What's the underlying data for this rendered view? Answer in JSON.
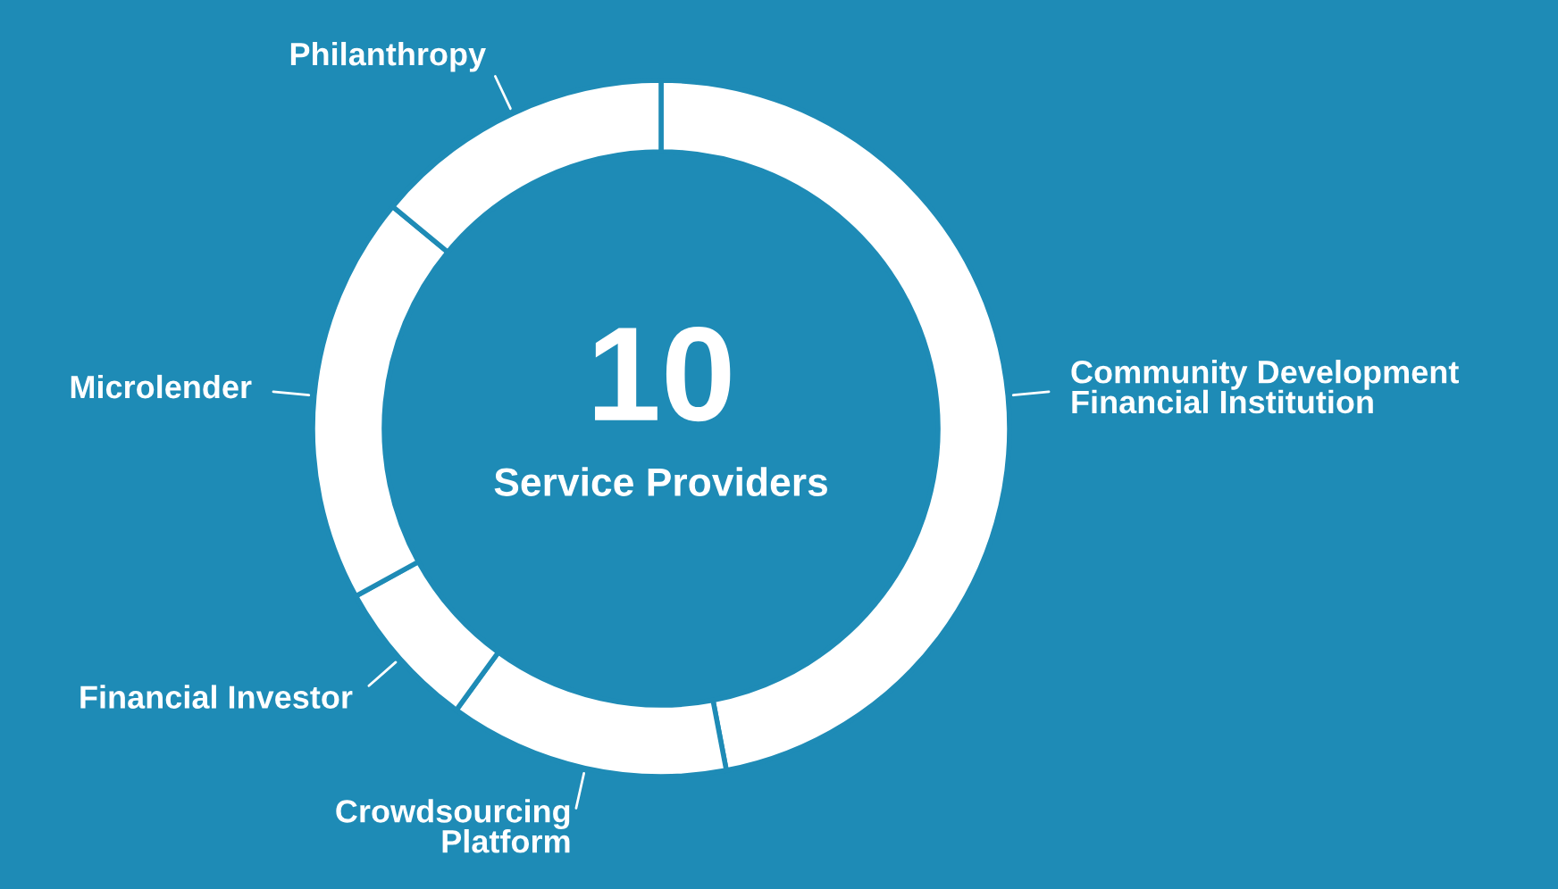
{
  "chart_data": {
    "type": "donut",
    "categories": [
      "Community Development\nFinancial Institution",
      "Crowdsourcing\nPlatform",
      "Financial Investor",
      "Microlender",
      "Philanthropy"
    ],
    "values": [
      47,
      13,
      7,
      19,
      14
    ],
    "colors": [
      "#ffffff",
      "#ffffff",
      "#ffffff",
      "#ffffff",
      "#ffffff"
    ],
    "annotations": [
      "10",
      "Service Providers"
    ],
    "legend": false
  }
}
